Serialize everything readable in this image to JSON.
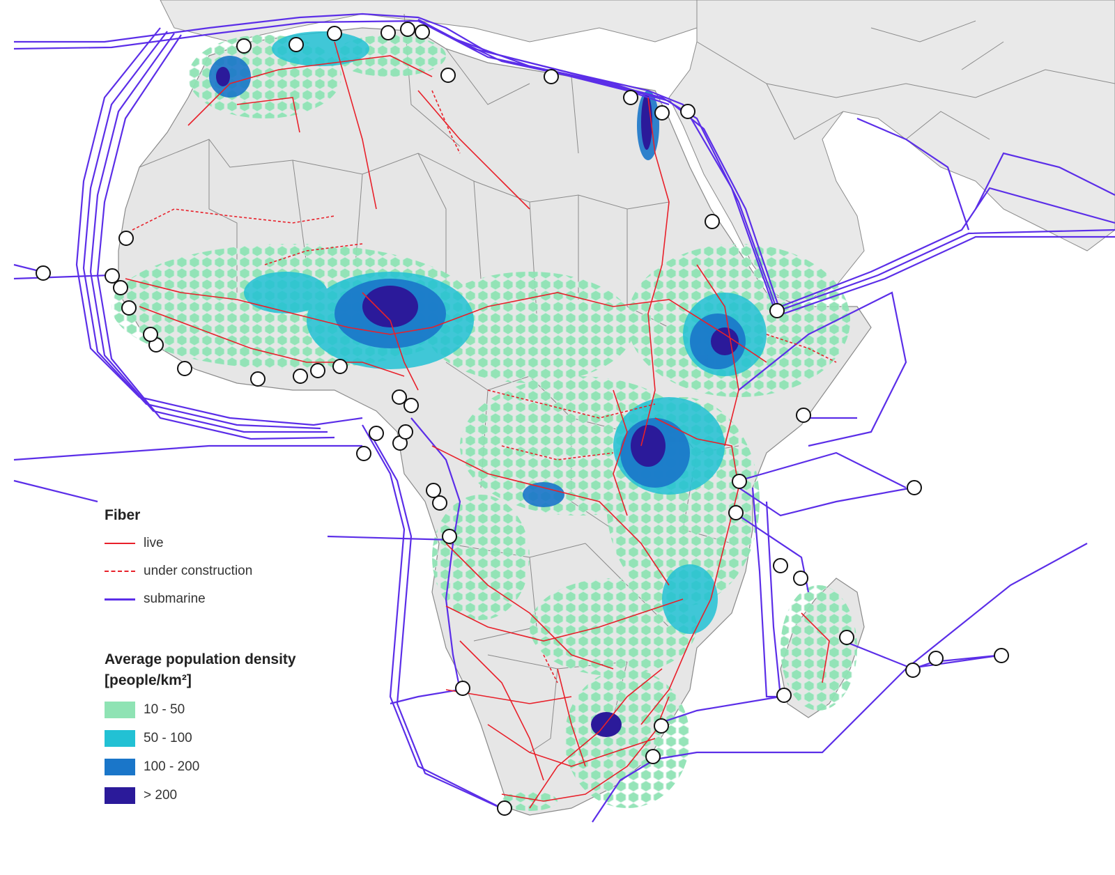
{
  "map": {
    "colors": {
      "ocean": "#ffffff",
      "land_africa": "#e6e6e6",
      "land_other": "#e9e9e9",
      "border": "#8a8a8a",
      "fiber_live": "#e8202a",
      "fiber_construction": "#e8202a",
      "fiber_submarine": "#5b2ee8",
      "landing_ring": "#111111"
    }
  },
  "legend": {
    "fiber_title": "Fiber",
    "fiber_items": [
      {
        "label": "live",
        "style": "solid",
        "color": "#e8202a"
      },
      {
        "label": "under construction",
        "style": "dashed",
        "color": "#e8202a"
      },
      {
        "label": "submarine",
        "style": "solid",
        "color": "#5b2ee8"
      }
    ],
    "density_title_line1": "Average population density",
    "density_title_line2": "[people/km²]",
    "density_items": [
      {
        "label": "10 - 50",
        "color": "#8fe3b4"
      },
      {
        "label": "50 - 100",
        "color": "#22c1d4"
      },
      {
        "label": "100 - 200",
        "color": "#1a76c9"
      },
      {
        "label": "> 200",
        "color": "#2b1a9a"
      }
    ]
  }
}
